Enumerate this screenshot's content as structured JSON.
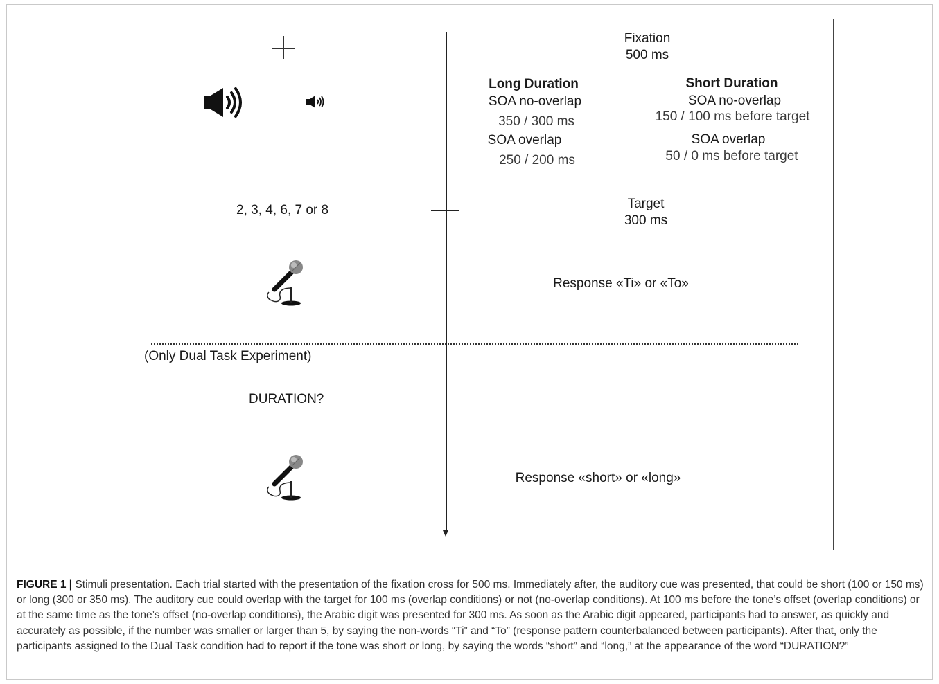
{
  "figure": {
    "fixation": {
      "title": "Fixation",
      "time": "500 ms"
    },
    "long_duration": {
      "title": "Long Duration",
      "soa_no_overlap": "SOA  no-overlap",
      "no_overlap_values": "350  /  300 ms",
      "soa_overlap": "SOA  overlap",
      "overlap_values": "250  /  200 ms"
    },
    "short_duration": {
      "title": "Short Duration",
      "soa_no_overlap": "SOA  no-overlap",
      "no_overlap_values": "150  /  100 ms before target",
      "soa_overlap": "SOA  overlap",
      "overlap_values": "50  /  0 ms before target"
    },
    "digits": "2, 3, 4, 6, 7  or   8",
    "target": {
      "title": "Target",
      "time": "300 ms"
    },
    "response_1": "Response «Ti» or «To»",
    "dual_task_note": "(Only Dual Task Experiment)",
    "duration_question": "DURATION?",
    "response_2": "Response «short» or «long»",
    "icons": [
      "fixation-cross-icon",
      "loud-speaker-icon",
      "quiet-speaker-icon",
      "microphone-icon"
    ]
  },
  "caption": {
    "label": "FIGURE 1 |",
    "text": " Stimuli presentation. Each trial started with the presentation of the fixation cross for 500 ms. Immediately after, the auditory cue was presented, that could be short (100 or 150 ms) or long (300 or 350 ms). The auditory cue could overlap with the target for 100 ms (overlap conditions) or not (no-overlap conditions). At 100 ms before the tone’s offset (overlap conditions) or at the same time as the tone’s offset (no-overlap conditions), the Arabic digit was presented for 300 ms. As soon as the Arabic digit appeared, participants had to answer, as quickly and accurately as possible, if the number was smaller or larger than 5, by saying the non-words “Ti” and “To” (response pattern counterbalanced between participants). After that, only the participants assigned to the Dual Task condition had to report if the tone was short or long, by saying the words “short” and “long,” at the appearance of the word “DURATION?”"
  }
}
